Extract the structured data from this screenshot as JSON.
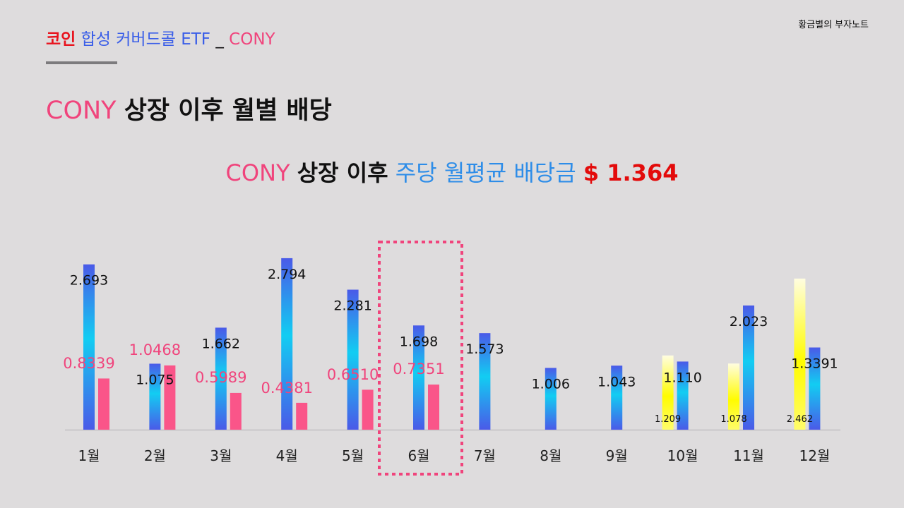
{
  "brand": "황금별의 부자노트",
  "header": {
    "part1": "코인",
    "part2": "합성 커버드콜 ETF",
    "part3": "_",
    "part4": "CONY"
  },
  "title": {
    "ticker": "CONY",
    "text": "상장 이후 월별 배당"
  },
  "subtitle": {
    "ticker": "CONY",
    "text1": "상장 이후",
    "text2": "주당 월평균 배당금",
    "value": "$ 1.364"
  },
  "colors": {
    "blue_bar_top": "#4a5ae8",
    "blue_bar_mid": "#12cdf2",
    "pink_bar": "#fa5589",
    "yellow_bar": "#fffc00",
    "pink_text": "#f0447c",
    "highlight_box": "#f0447c"
  },
  "chart_data": {
    "type": "bar",
    "categories": [
      "1월",
      "2월",
      "3월",
      "4월",
      "5월",
      "6월",
      "7월",
      "8월",
      "9월",
      "10월",
      "11월",
      "12월"
    ],
    "ylim": [
      0,
      3
    ],
    "highlight_category": "6월",
    "series": [
      {
        "style": "yellow",
        "values": [
          null,
          null,
          null,
          null,
          null,
          null,
          null,
          null,
          null,
          1.209,
          1.078,
          2.462
        ],
        "labels": [
          "",
          "",
          "",
          "",
          "",
          "",
          "",
          "",
          "",
          "1.209",
          "1.078",
          "2.462"
        ]
      },
      {
        "style": "blue",
        "values": [
          2.693,
          1.075,
          1.662,
          2.794,
          2.281,
          1.698,
          1.573,
          1.006,
          1.043,
          1.11,
          2.023,
          1.3391
        ],
        "labels": [
          "2.693",
          "1.075",
          "1.662",
          "2.794",
          "2.281",
          "1.698",
          "1.573",
          "1.006",
          "1.043",
          "1.110",
          "2.023",
          "1.3391"
        ]
      },
      {
        "style": "pink",
        "values": [
          0.8339,
          1.0468,
          0.5989,
          0.4381,
          0.651,
          0.7351,
          null,
          null,
          null,
          null,
          null,
          null
        ],
        "labels": [
          "0.8339",
          "1.0468",
          "0.5989",
          "0.4381",
          "0.6510",
          "0.7351",
          "",
          "",
          "",
          "",
          "",
          ""
        ]
      }
    ]
  }
}
